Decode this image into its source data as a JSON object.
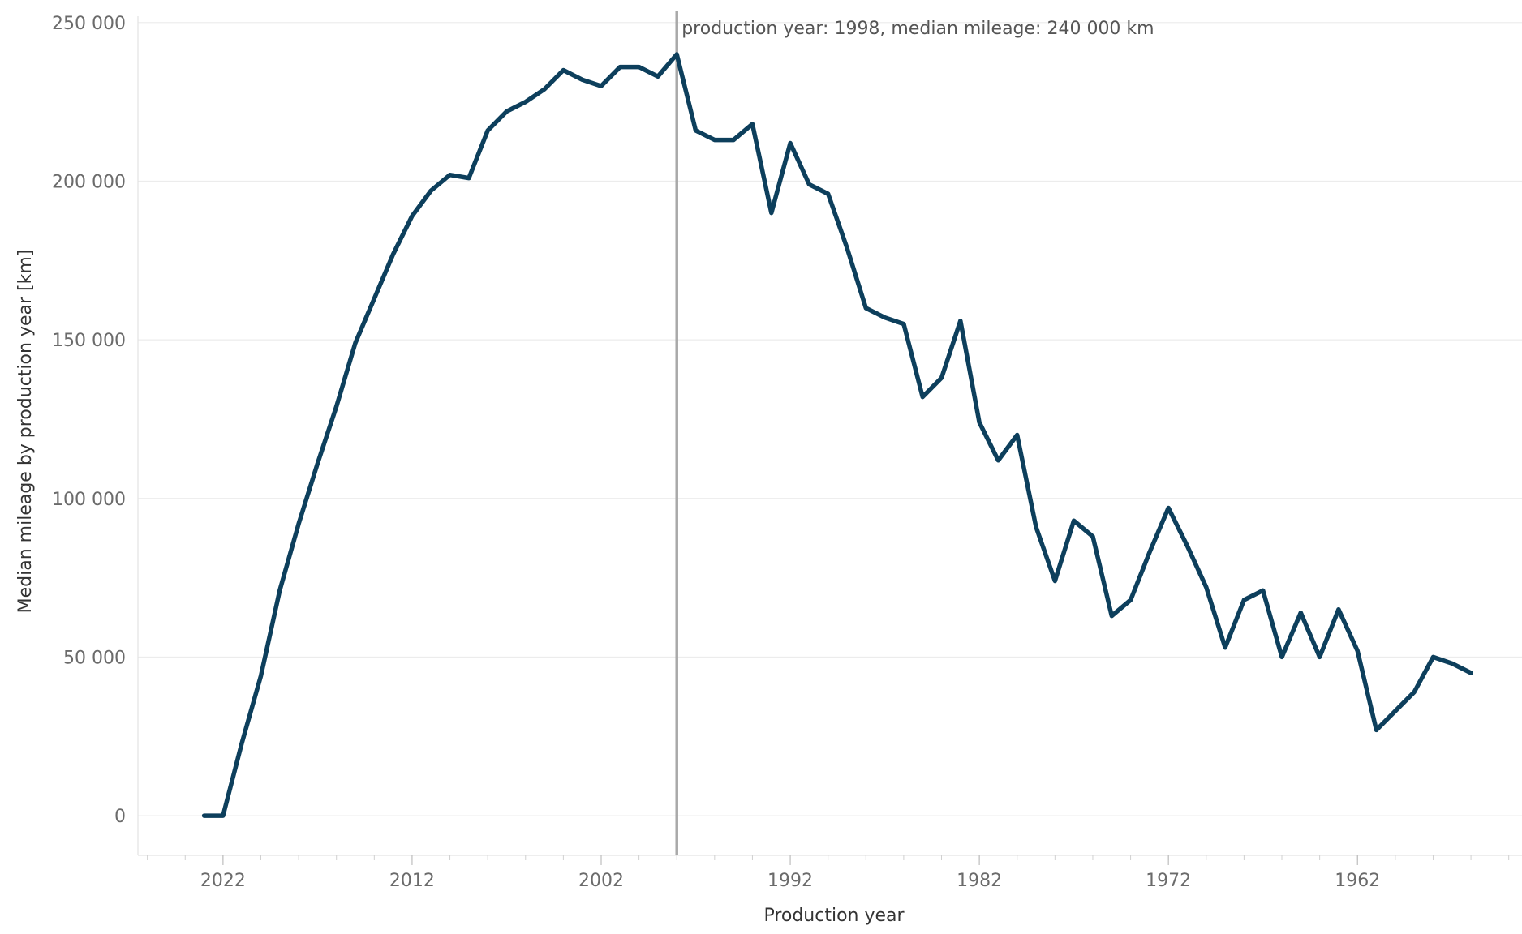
{
  "chart_data": {
    "type": "line",
    "title": "",
    "xlabel": "Production year",
    "ylabel": "Median mileage by production year [km]",
    "x_reversed": true,
    "xlim": [
      2026.5,
      1953.3
    ],
    "ylim": [
      -12500,
      252000
    ],
    "x_ticks": [
      {
        "value": 2022,
        "label": "2022"
      },
      {
        "value": 2012,
        "label": "2012"
      },
      {
        "value": 2002,
        "label": "2002"
      },
      {
        "value": 1992,
        "label": "1992"
      },
      {
        "value": 1982,
        "label": "1982"
      },
      {
        "value": 1972,
        "label": "1972"
      },
      {
        "value": 1962,
        "label": "1962"
      }
    ],
    "y_ticks": [
      {
        "value": 0,
        "label": "0"
      },
      {
        "value": 50000,
        "label": "50 000"
      },
      {
        "value": 100000,
        "label": "100 000"
      },
      {
        "value": 150000,
        "label": "150 000"
      },
      {
        "value": 200000,
        "label": "200 000"
      },
      {
        "value": 250000,
        "label": "250 000"
      }
    ],
    "grid": true,
    "legend": "none",
    "series": [
      {
        "color": "#0d3f5c",
        "x": [
          2023,
          2022,
          2021,
          2020,
          2019,
          2018,
          2017,
          2016,
          2015,
          2014,
          2013,
          2012,
          2011,
          2010,
          2009,
          2008,
          2007,
          2006,
          2005,
          2004,
          2003,
          2002,
          2001,
          2000,
          1999,
          1998,
          1997,
          1996,
          1995,
          1994,
          1993,
          1992,
          1991,
          1990,
          1989,
          1988,
          1987,
          1986,
          1985,
          1984,
          1983,
          1982,
          1981,
          1980,
          1979,
          1978,
          1977,
          1976,
          1975,
          1974,
          1973,
          1972,
          1971,
          1970,
          1969,
          1968,
          1967,
          1966,
          1965,
          1964,
          1963,
          1962,
          1961,
          1960,
          1959,
          1958,
          1957,
          1956
        ],
        "y": [
          0,
          0,
          23000,
          44000,
          71000,
          92000,
          111000,
          129000,
          149000,
          163000,
          177000,
          189000,
          197000,
          202000,
          201000,
          216000,
          222000,
          225000,
          229000,
          235000,
          232000,
          230000,
          236000,
          236000,
          233000,
          240000,
          216000,
          213000,
          213000,
          218000,
          190000,
          212000,
          199000,
          196000,
          179000,
          160000,
          157000,
          155000,
          132000,
          138000,
          156000,
          124000,
          112000,
          120000,
          91000,
          74000,
          93000,
          88000,
          63000,
          68000,
          83000,
          97000,
          85000,
          72000,
          53000,
          68000,
          71000,
          50000,
          64000,
          50000,
          65000,
          52000,
          27000,
          33000,
          39000,
          50000,
          48000,
          45000
        ]
      }
    ],
    "annotations": [
      {
        "x": 1998,
        "label": "production year: 1998, median mileage: 240 000 km"
      }
    ]
  }
}
